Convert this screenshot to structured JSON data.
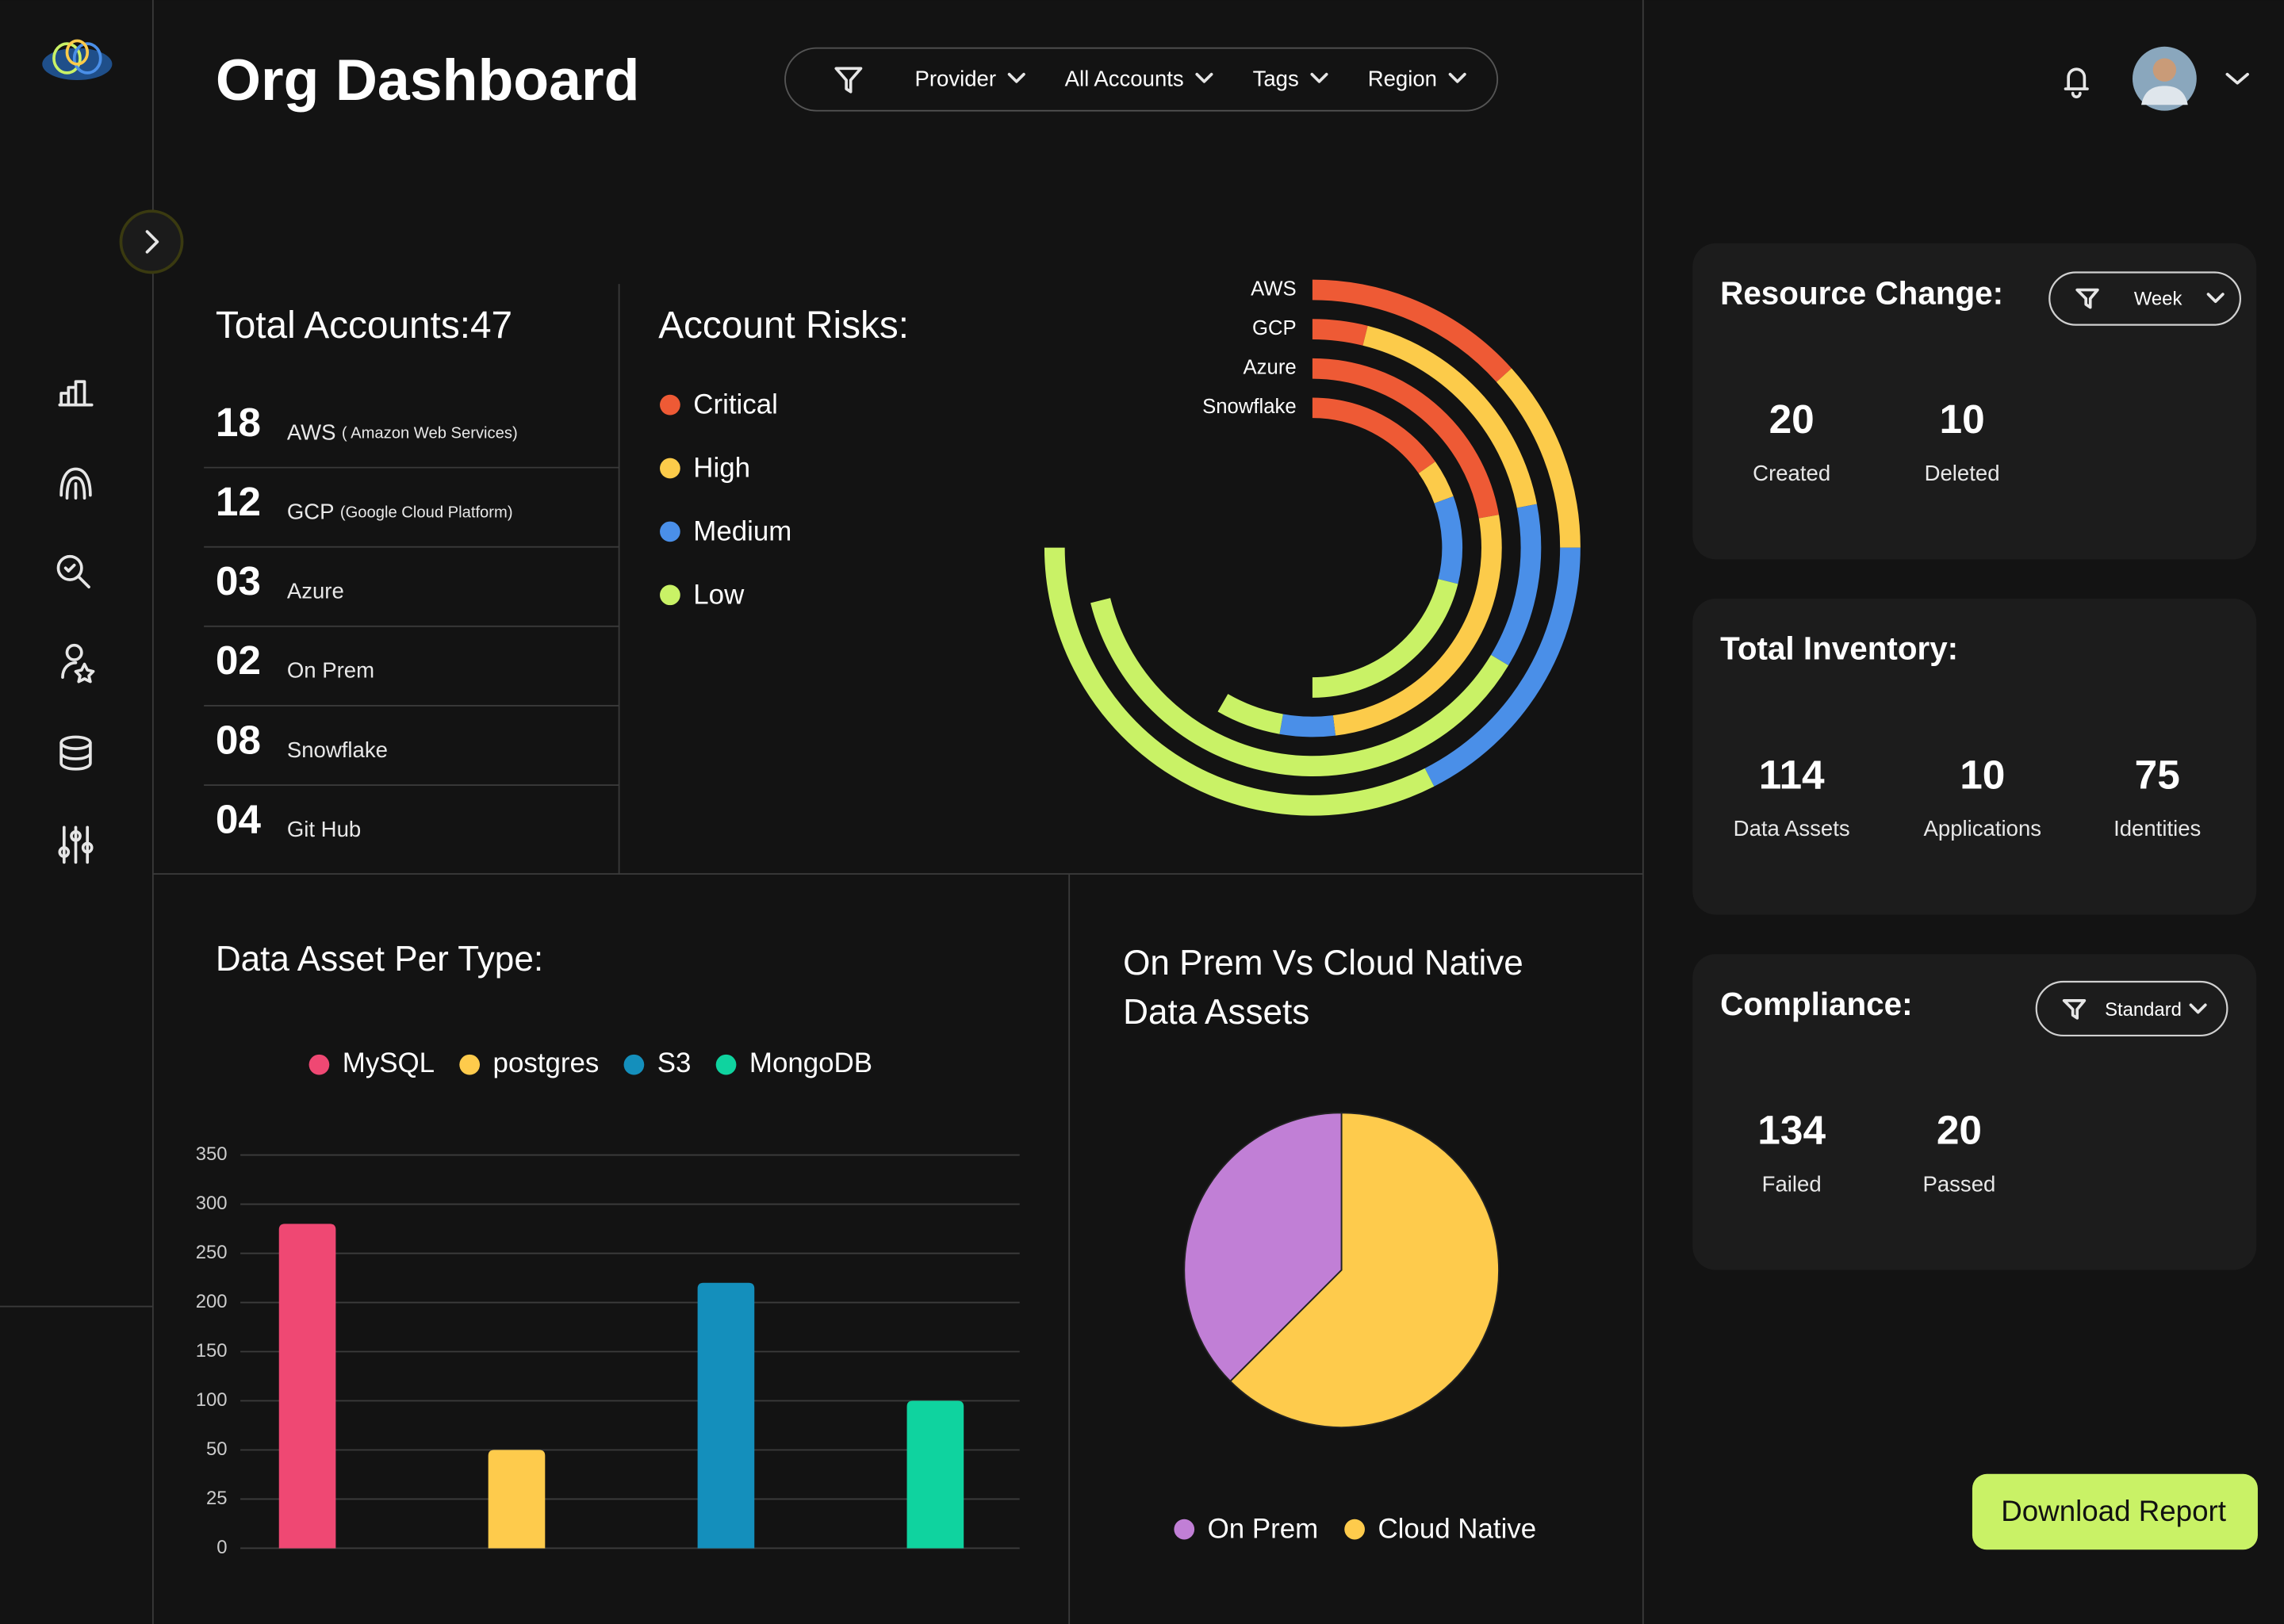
{
  "header": {
    "title": "Org Dashboard",
    "filters": [
      "Provider",
      "All Accounts",
      "Tags",
      "Region"
    ]
  },
  "accounts": {
    "title": "Total Accounts:47",
    "rows": [
      {
        "count": "18",
        "name": "AWS",
        "detail": "( Amazon Web Services)"
      },
      {
        "count": "12",
        "name": "GCP",
        "detail": "(Google Cloud Platform)"
      },
      {
        "count": "03",
        "name": "Azure"
      },
      {
        "count": "02",
        "name": "On Prem"
      },
      {
        "count": "08",
        "name": "Snowflake"
      },
      {
        "count": "04",
        "name": "Git Hub"
      }
    ]
  },
  "chart_data": [
    {
      "type": "radial-bar",
      "title": "Account Risks:",
      "categories": [
        "AWS",
        "GCP",
        "Azure",
        "Snowflake"
      ],
      "series": [
        {
          "name": "Critical",
          "color": "#ee5a35",
          "values": [
            48,
            14,
            80,
            55
          ]
        },
        {
          "name": "High",
          "color": "#fccb4a",
          "values": [
            42,
            65,
            93,
            15
          ]
        },
        {
          "name": "Medium",
          "color": "#4a8fe8",
          "values": [
            63,
            42,
            17,
            34
          ]
        },
        {
          "name": "Low",
          "color": "#c9f266",
          "values": [
            117,
            135,
            20,
            76
          ]
        }
      ]
    },
    {
      "type": "bar",
      "title": "Data Asset Per Type:",
      "categories": [
        "MySQL",
        "postgres",
        "S3",
        "MongoDB"
      ],
      "colors": [
        "#ef4873",
        "#fecb4c",
        "#148fbc",
        "#0fd39f"
      ],
      "values": [
        280,
        50,
        220,
        100
      ],
      "ylim": [
        0,
        350
      ],
      "yticks": [
        0,
        25,
        50,
        100,
        150,
        200,
        250,
        300,
        350
      ],
      "grid": true
    },
    {
      "type": "pie",
      "title": "On Prem Vs Cloud Native Data Assets",
      "categories": [
        "On Prem",
        "Cloud Native"
      ],
      "colors": [
        "#c17fd6",
        "#fecb4c"
      ],
      "values": [
        37.5,
        62.5
      ]
    }
  ],
  "resource_change": {
    "title": "Resource Change:",
    "filter": "Week",
    "stats": [
      {
        "value": 20,
        "label": "Created"
      },
      {
        "value": 10,
        "label": "Deleted"
      }
    ]
  },
  "inventory": {
    "title": "Total Inventory:",
    "stats": [
      {
        "value": 114,
        "label": "Data Assets"
      },
      {
        "value": 10,
        "label": "Applications"
      },
      {
        "value": 75,
        "label": "Identities"
      }
    ]
  },
  "compliance": {
    "title": "Compliance:",
    "filter": "Standard",
    "stats": [
      {
        "value": 134,
        "label": "Failed"
      },
      {
        "value": 20,
        "label": "Passed"
      }
    ]
  },
  "download": "Download Report"
}
